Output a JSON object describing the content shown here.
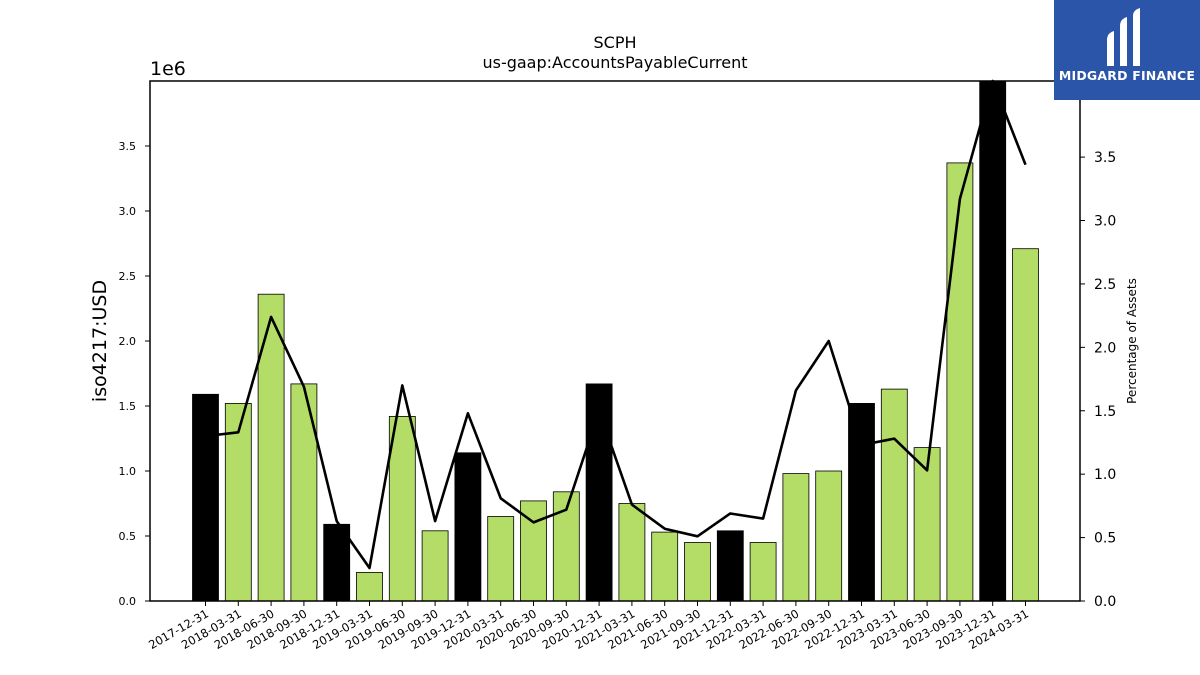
{
  "logo": {
    "text": "MIDGARD FINANCE"
  },
  "chart_data": {
    "type": "bar",
    "title": "SCPH",
    "subtitle": "us-gaap:AccountsPayableCurrent",
    "ylabel": "iso4217:USD",
    "y_multiplier": "1e6",
    "y2label": "Percentage of Assets",
    "categories": [
      "2017-12-31",
      "2018-03-31",
      "2018-06-30",
      "2018-09-30",
      "2018-12-31",
      "2019-03-31",
      "2019-06-30",
      "2019-09-30",
      "2019-12-31",
      "2020-03-31",
      "2020-06-30",
      "2020-09-30",
      "2020-12-31",
      "2021-03-31",
      "2021-06-30",
      "2021-09-30",
      "2021-12-31",
      "2022-03-31",
      "2022-06-30",
      "2022-09-30",
      "2022-12-31",
      "2023-03-31",
      "2023-06-30",
      "2023-09-30",
      "2023-12-31",
      "2024-03-31"
    ],
    "values": [
      1.59,
      1.52,
      2.36,
      1.67,
      0.59,
      0.22,
      1.42,
      0.54,
      1.14,
      0.65,
      0.77,
      0.84,
      1.67,
      0.75,
      0.53,
      0.45,
      0.54,
      0.45,
      0.98,
      1.0,
      1.52,
      1.63,
      1.18,
      3.37,
      4.0,
      2.71
    ],
    "bar_colors": [
      "#000000",
      "#b3dd67",
      "#b3dd67",
      "#b3dd67",
      "#000000",
      "#b3dd67",
      "#b3dd67",
      "#b3dd67",
      "#000000",
      "#b3dd67",
      "#b3dd67",
      "#b3dd67",
      "#000000",
      "#b3dd67",
      "#b3dd67",
      "#b3dd67",
      "#000000",
      "#b3dd67",
      "#b3dd67",
      "#b3dd67",
      "#000000",
      "#b3dd67",
      "#b3dd67",
      "#b3dd67",
      "#000000",
      "#b3dd67"
    ],
    "ylim": [
      0,
      4.0
    ],
    "yticks": [
      "0.0",
      "0.5",
      "1.0",
      "1.5",
      "2.0",
      "2.5",
      "3.0",
      "3.5"
    ],
    "line_values": [
      1.3,
      1.33,
      2.24,
      1.69,
      0.63,
      0.26,
      1.7,
      0.63,
      1.48,
      0.81,
      0.62,
      0.72,
      1.5,
      0.76,
      0.57,
      0.51,
      0.69,
      0.65,
      1.66,
      2.05,
      1.23,
      1.28,
      1.03,
      3.17,
      4.1,
      3.44
    ],
    "y2lim": [
      0,
      4.1
    ],
    "y2ticks": [
      "0.0",
      "0.5",
      "1.0",
      "1.5",
      "2.0",
      "2.5",
      "3.0",
      "3.5"
    ],
    "grid": false,
    "legend": "none"
  }
}
